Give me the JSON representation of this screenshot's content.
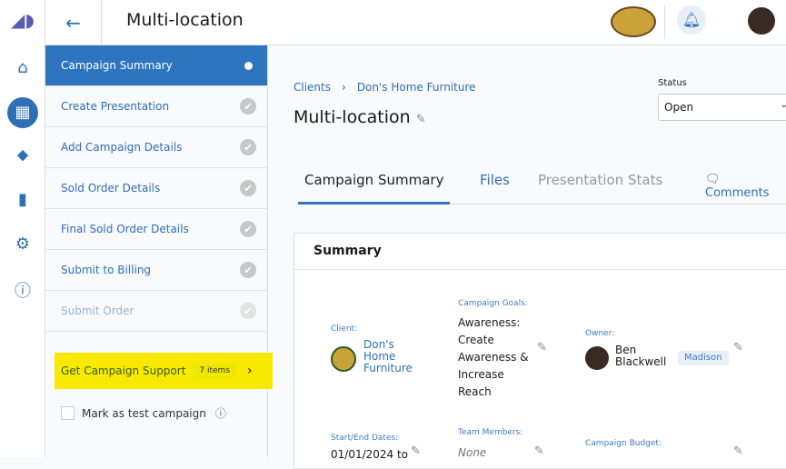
{
  "header": {
    "title": "Multi-location"
  },
  "rail": [
    "home-icon",
    "dashboard-icon",
    "tag-icon",
    "chart-icon",
    "gear-icon",
    "help-icon"
  ],
  "steps": [
    {
      "label": "Campaign Summary",
      "state": "active"
    },
    {
      "label": "Create Presentation",
      "state": "done"
    },
    {
      "label": "Add Campaign Details",
      "state": "done"
    },
    {
      "label": "Sold Order Details",
      "state": "done"
    },
    {
      "label": "Final Sold Order Details",
      "state": "done"
    },
    {
      "label": "Submit to Billing",
      "state": "done"
    },
    {
      "label": "Submit Order",
      "state": "disabled"
    }
  ],
  "support": {
    "label": "Get Campaign Support",
    "count": "7 items"
  },
  "test_campaign": "Mark as test campaign",
  "breadcrumb": {
    "root": "Clients",
    "client": "Don's Home Furniture"
  },
  "page_title": "Multi-location",
  "status": {
    "label": "Status",
    "value": "Open"
  },
  "tabs": [
    "Campaign Summary",
    "Files",
    "Presentation Stats"
  ],
  "comments": "Comments",
  "summary": {
    "title": "Summary",
    "client_label": "Client:",
    "client": "Don's Home Furniture",
    "goals_label": "Campaign Goals:",
    "goals": "Awareness: Create Awareness & Increase Reach",
    "owner_label": "Owner:",
    "owner": "Ben Blackwell",
    "owner_tag": "Madison",
    "dates_label": "Start/End Dates:",
    "dates": "01/01/2024 to",
    "team_label": "Team Members:",
    "team": "None",
    "budget_label": "Campaign Budget:"
  }
}
